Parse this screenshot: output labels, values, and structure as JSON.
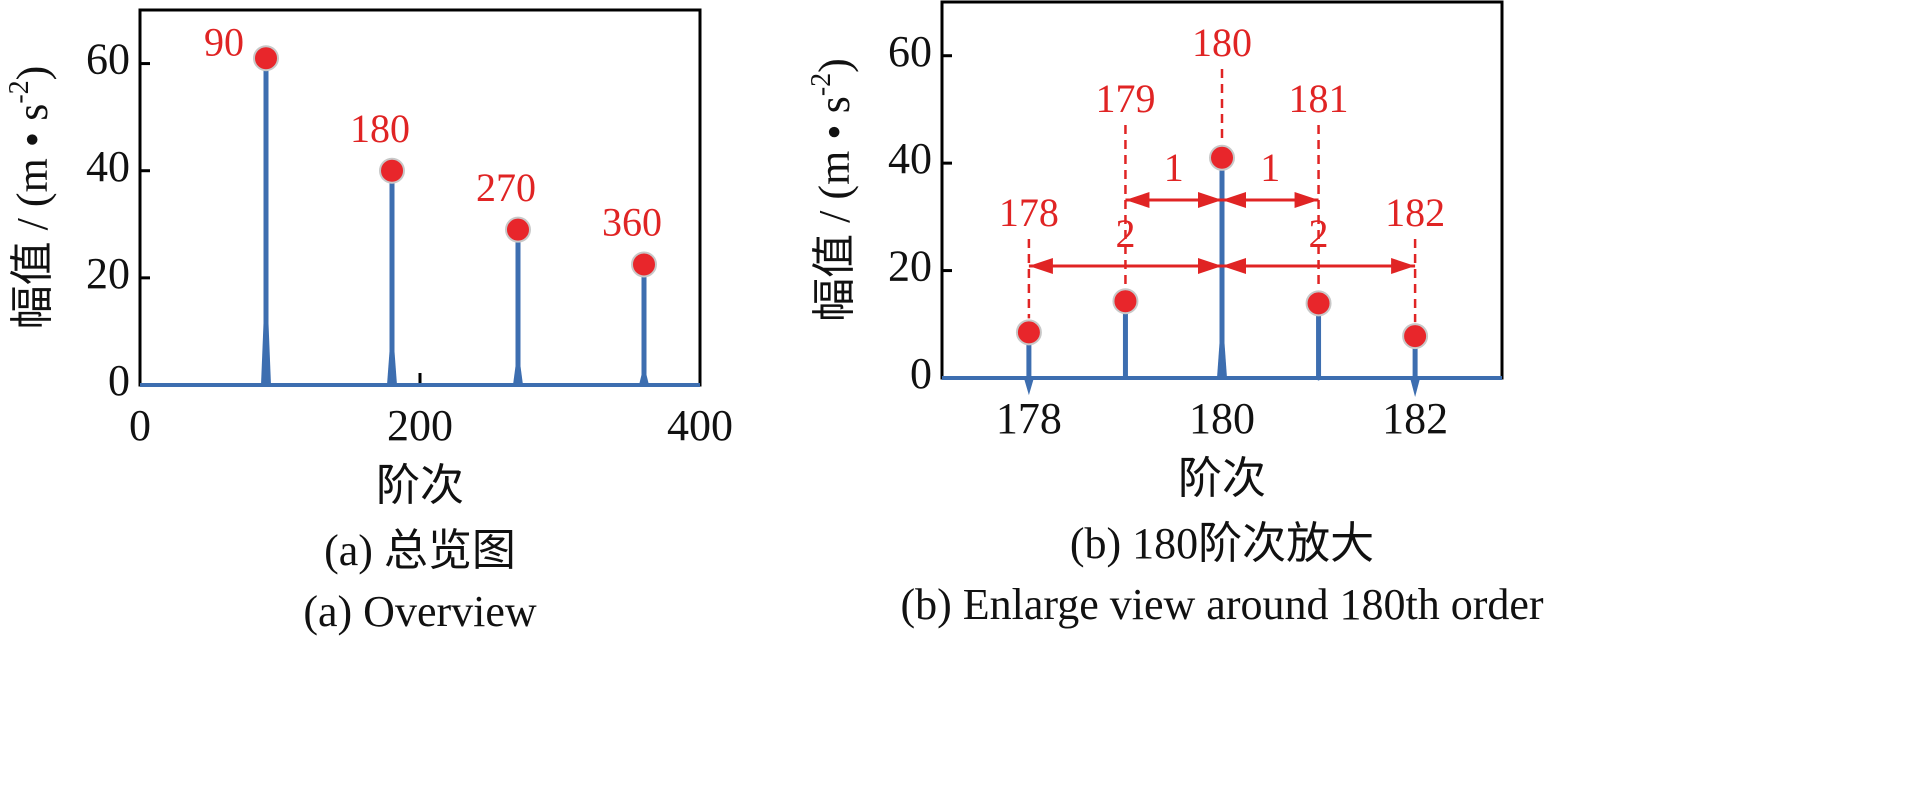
{
  "chart_data": [
    {
      "type": "stem",
      "ylabel": [
        "幅值 / (m • s",
        "-2",
        ")"
      ],
      "xlabel": "阶次",
      "caption": [
        "(a)  总览图",
        "(a)  Overview"
      ],
      "x": [
        90,
        180,
        270,
        360
      ],
      "values": [
        61,
        40,
        29,
        22.5
      ],
      "xlim": [
        0,
        400
      ],
      "xticks": [
        0,
        200,
        400
      ],
      "ylim": [
        0,
        70
      ],
      "yticks": [
        0,
        20,
        40,
        60
      ],
      "color": "#3d6eb0",
      "marker_color": "#e8262b"
    },
    {
      "type": "stem",
      "ylabel": [
        "幅值 / (m • s",
        "-2",
        ")"
      ],
      "xlabel": "阶次",
      "caption": [
        "(b)  180阶次放大",
        "(b)  Enlarge view around 180th order"
      ],
      "x": [
        178,
        179,
        180,
        181,
        182
      ],
      "values": [
        8.5,
        14.3,
        41,
        13.9,
        7.8
      ],
      "xlim": [
        177.1,
        182.9
      ],
      "xticks": [
        178,
        180,
        182
      ],
      "ylim": [
        0,
        70
      ],
      "yticks": [
        0,
        20,
        40,
        60
      ],
      "intervals": [
        {
          "from": 179,
          "to": 180,
          "label": 1
        },
        {
          "from": 180,
          "to": 181,
          "label": 1
        },
        {
          "from": 178,
          "to": 180,
          "label": 2
        },
        {
          "from": 180,
          "to": 182,
          "label": 2
        }
      ],
      "color": "#3d6eb0",
      "marker_color": "#e8262b"
    }
  ]
}
